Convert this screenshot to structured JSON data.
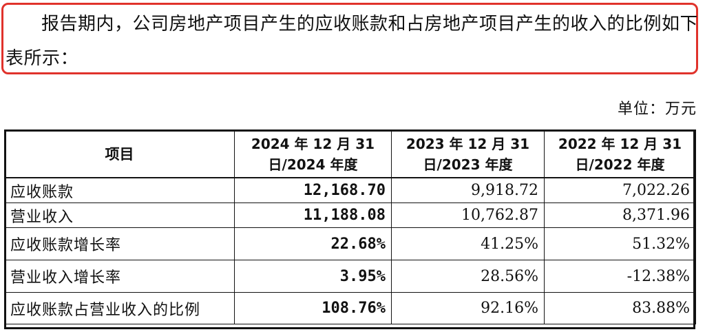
{
  "intro": {
    "text": "报告期内，公司房地产项目产生的应收账款和占房地产项目产生的收入的比例如下表所示：",
    "highlight_color": "#e0322b"
  },
  "unit": "单位：万元",
  "table": {
    "headers": [
      "项目",
      "2024 年 12 月 31 日/2024 年度",
      "2023 年 12 月 31 日/2023 年度",
      "2022 年 12 月 31 日/2022 年度"
    ],
    "rows": [
      {
        "label": "应收账款",
        "values": [
          "12,168.70",
          "9,918.72",
          "7,022.26"
        ]
      },
      {
        "label": "营业收入",
        "values": [
          "11,188.08",
          "10,762.87",
          "8,371.96"
        ]
      },
      {
        "label": "应收账款增长率",
        "values": [
          "22.68%",
          "41.25%",
          "51.32%"
        ]
      },
      {
        "label": "营业收入增长率",
        "values": [
          "3.95%",
          "28.56%",
          "-12.38%"
        ]
      },
      {
        "label": "应收账款占营业收入的比例",
        "values": [
          "108.76%",
          "92.16%",
          "83.88%"
        ]
      }
    ]
  }
}
